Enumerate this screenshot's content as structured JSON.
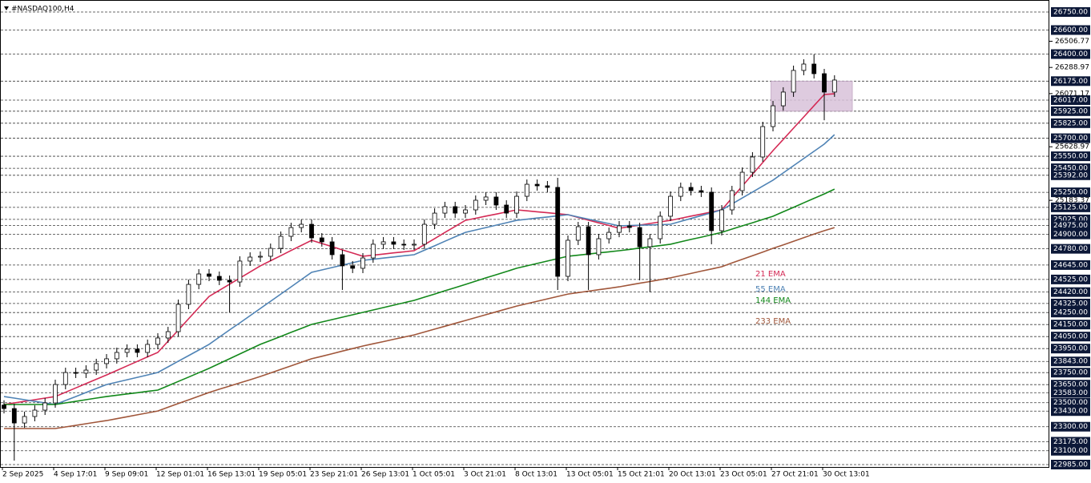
{
  "chart_data": {
    "type": "candlestick",
    "title": "#NASDAQ100,H4",
    "categories": [
      "2 Sep 2025",
      null,
      null,
      null,
      null,
      "4 Sep 17:01",
      null,
      null,
      null,
      null,
      "9 Sep 09:01",
      null,
      null,
      null,
      null,
      "12 Sep 01:01",
      null,
      null,
      null,
      null,
      "16 Sep 13:01",
      null,
      null,
      null,
      null,
      "19 Sep 05:01",
      null,
      null,
      null,
      null,
      "23 Sep 21:01",
      null,
      null,
      null,
      null,
      "26 Sep 13:01",
      null,
      null,
      null,
      null,
      "1 Oct 05:01",
      null,
      null,
      null,
      null,
      "3 Oct 21:01",
      null,
      null,
      null,
      null,
      "8 Oct 13:01",
      null,
      null,
      null,
      null,
      "13 Oct 05:01",
      null,
      null,
      null,
      null,
      "15 Oct 21:01",
      null,
      null,
      null,
      null,
      "20 Oct 13:01",
      null,
      null,
      null,
      null,
      "23 Oct 05:01",
      null,
      null,
      null,
      null,
      "27 Oct 21:01",
      null,
      null,
      null,
      null,
      "30 Oct 13:01",
      null
    ],
    "open": [
      23480,
      23451,
      23331,
      23385,
      23438,
      23498,
      23651,
      23751,
      23745,
      23771,
      23825,
      23865,
      23918,
      23945,
      23918,
      23985,
      24038,
      24091,
      24318,
      24484,
      24571,
      24551,
      24518,
      24504,
      24678,
      24711,
      24718,
      24784,
      24884,
      24957,
      24984,
      24871,
      24838,
      24731,
      24638,
      24618,
      24704,
      24818,
      24838,
      24818,
      24811,
      24818,
      24984,
      25077,
      25131,
      25077,
      25104,
      25184,
      25211,
      25144,
      25077,
      25217,
      25317,
      25304,
      25291,
      24551,
      24851,
      24964,
      24731,
      24864,
      24917,
      24971,
      24957,
      24797,
      24864,
      25051,
      25217,
      25291,
      25264,
      25251,
      24931,
      25104,
      25264,
      25417,
      25544,
      25797,
      25970,
      26084,
      26264,
      26317,
      26237,
      26084
    ],
    "high": [
      23520,
      23491,
      23425,
      23478,
      23538,
      23691,
      23791,
      23791,
      23811,
      23865,
      23905,
      23958,
      23985,
      23985,
      24025,
      24078,
      24131,
      24358,
      24524,
      24611,
      24611,
      24591,
      24558,
      24718,
      24751,
      24758,
      24824,
      24924,
      24997,
      25024,
      25024,
      24911,
      24878,
      24771,
      24678,
      24744,
      24858,
      24878,
      24878,
      24858,
      24858,
      25024,
      25117,
      25171,
      25171,
      25144,
      25224,
      25251,
      25251,
      25184,
      25257,
      25357,
      25357,
      25344,
      25371,
      24891,
      25004,
      25004,
      24904,
      24957,
      25011,
      25011,
      24997,
      24904,
      25091,
      25257,
      25331,
      25331,
      25304,
      25291,
      25144,
      25304,
      25457,
      25584,
      25837,
      26010,
      26124,
      26304,
      26357,
      26397,
      26277,
      26224
    ],
    "low": [
      23411,
      23018,
      23291,
      23345,
      23398,
      23458,
      23611,
      23705,
      23705,
      23731,
      23785,
      23825,
      23878,
      23878,
      23878,
      23945,
      23998,
      24051,
      24278,
      24444,
      24511,
      24478,
      24251,
      24464,
      24638,
      24671,
      24678,
      24744,
      24844,
      24917,
      24831,
      24798,
      24691,
      24438,
      24578,
      24578,
      24664,
      24778,
      24778,
      24771,
      24771,
      24778,
      24944,
      25037,
      25037,
      25037,
      25064,
      25144,
      25104,
      25037,
      25037,
      25177,
      25264,
      25251,
      24438,
      24511,
      24811,
      24438,
      24691,
      24824,
      24877,
      24917,
      24518,
      24418,
      24824,
      25011,
      25177,
      25224,
      25211,
      24818,
      24891,
      25064,
      25224,
      25377,
      25504,
      25757,
      25930,
      26044,
      26224,
      26197,
      25850,
      26044
    ],
    "close": [
      23451,
      23331,
      23385,
      23438,
      23498,
      23651,
      23751,
      23745,
      23771,
      23825,
      23865,
      23918,
      23945,
      23918,
      23985,
      24038,
      24091,
      24318,
      24484,
      24571,
      24551,
      24518,
      24504,
      24678,
      24711,
      24718,
      24784,
      24884,
      24957,
      24984,
      24871,
      24838,
      24731,
      24638,
      24618,
      24704,
      24818,
      24838,
      24818,
      24811,
      24818,
      24984,
      25077,
      25131,
      25077,
      25104,
      25184,
      25211,
      25144,
      25077,
      25217,
      25317,
      25304,
      25291,
      24551,
      24851,
      24964,
      24731,
      24864,
      24917,
      24971,
      24957,
      24797,
      24864,
      25051,
      25217,
      25291,
      25264,
      25251,
      24931,
      25104,
      25264,
      25417,
      25544,
      25797,
      25970,
      26084,
      26264,
      26317,
      26237,
      26084,
      26184
    ],
    "up_color": "#ffffff",
    "down_color": "#000000",
    "series": [
      {
        "name": "21 EMA",
        "color": "#d42a55",
        "values": [
          23485,
          23498,
          23511,
          23525,
          23538,
          23551,
          23587,
          23623,
          23659,
          23695,
          23731,
          23768,
          23806,
          23843,
          23881,
          23918,
          24011,
          24104,
          24198,
          24291,
          24384,
          24435,
          24486,
          24536,
          24587,
          24638,
          24681,
          24723,
          24766,
          24808,
          24851,
          24824,
          24798,
          24771,
          24745,
          24718,
          24727,
          24736,
          24746,
          24755,
          24764,
          24815,
          24865,
          24916,
          24966,
          25017,
          25034,
          25052,
          25069,
          25087,
          25104,
          25096,
          25088,
          25080,
          25072,
          25064,
          25041,
          25019,
          24996,
          24974,
          24951,
          24964,
          24977,
          24991,
          25004,
          25017,
          25034,
          25052,
          25069,
          25087,
          25104,
          25203,
          25301,
          25400,
          25498,
          25597,
          25690,
          25784,
          25877,
          25971,
          26064,
          26070
        ]
      },
      {
        "name": "55 EMA",
        "color": "#4f83b5",
        "values": [
          23551,
          23538,
          23525,
          23511,
          23498,
          23485,
          23518,
          23551,
          23585,
          23618,
          23651,
          23671,
          23691,
          23711,
          23731,
          23751,
          23798,
          23845,
          23891,
          23938,
          23985,
          24045,
          24105,
          24164,
          24224,
          24284,
          24344,
          24404,
          24464,
          24524,
          24584,
          24604,
          24624,
          24644,
          24664,
          24684,
          24693,
          24703,
          24712,
          24722,
          24731,
          24768,
          24805,
          24843,
          24880,
          24917,
          24937,
          24957,
          24977,
          24997,
          25017,
          25026,
          25036,
          25045,
          25055,
          25064,
          25045,
          25027,
          25008,
          24990,
          24971,
          24974,
          24976,
          24979,
          24981,
          24984,
          25008,
          25032,
          25056,
          25080,
          25104,
          25153,
          25203,
          25252,
          25302,
          25351,
          25411,
          25471,
          25531,
          25591,
          25651,
          25730
        ]
      },
      {
        "name": "144 EMA",
        "color": "#12881a",
        "values": [
          23485,
          23485,
          23485,
          23485,
          23485,
          23485,
          23498,
          23511,
          23525,
          23538,
          23551,
          23562,
          23573,
          23583,
          23594,
          23605,
          23641,
          23677,
          23713,
          23749,
          23785,
          23825,
          23865,
          23905,
          23945,
          23985,
          24018,
          24051,
          24085,
          24118,
          24151,
          24171,
          24191,
          24211,
          24231,
          24251,
          24271,
          24291,
          24311,
          24331,
          24351,
          24378,
          24404,
          24431,
          24457,
          24484,
          24511,
          24538,
          24564,
          24591,
          24618,
          24638,
          24658,
          24678,
          24698,
          24718,
          24727,
          24736,
          24746,
          24755,
          24764,
          24775,
          24786,
          24796,
          24807,
          24818,
          24838,
          24858,
          24877,
          24897,
          24917,
          24944,
          24971,
          24997,
          25024,
          25051,
          25088,
          25125,
          25163,
          25200,
          25237,
          25277
        ]
      },
      {
        "name": "233 EMA",
        "color": "#a0563a",
        "values": [
          23285,
          23285,
          23285,
          23285,
          23285,
          23285,
          23298,
          23311,
          23325,
          23338,
          23351,
          23367,
          23383,
          23399,
          23415,
          23431,
          23462,
          23493,
          23523,
          23554,
          23585,
          23612,
          23638,
          23665,
          23691,
          23718,
          23747,
          23777,
          23806,
          23836,
          23865,
          23886,
          23907,
          23929,
          23950,
          23971,
          23990,
          24008,
          24027,
          24045,
          24064,
          24088,
          24112,
          24136,
          24160,
          24184,
          24208,
          24232,
          24256,
          24280,
          24304,
          24324,
          24344,
          24364,
          24384,
          24404,
          24416,
          24428,
          24440,
          24452,
          24464,
          24479,
          24494,
          24508,
          24523,
          24538,
          24557,
          24575,
          24594,
          24612,
          24631,
          24662,
          24692,
          24723,
          24753,
          24784,
          24813,
          24843,
          24872,
          24902,
          24931,
          24957
        ]
      }
    ],
    "ylim": [
      22965,
      26850
    ],
    "yticks": [
      26506.77,
      26288.97,
      26071.17,
      25628.97,
      25183.37
    ],
    "levels": [
      {
        "value": 26750,
        "label": "26750.00"
      },
      {
        "value": 26600,
        "label": "26600.00"
      },
      {
        "value": 26400,
        "label": "26400.00"
      },
      {
        "value": 26175,
        "label": "26175.00"
      },
      {
        "value": 26017,
        "label": "26017.00"
      },
      {
        "value": 25925,
        "label": "25925.00"
      },
      {
        "value": 25825,
        "label": "25825.00"
      },
      {
        "value": 25700,
        "label": "25700.00"
      },
      {
        "value": 25550,
        "label": "25550.00"
      },
      {
        "value": 25450,
        "label": "25450.00"
      },
      {
        "value": 25392,
        "label": "25392.00"
      },
      {
        "value": 25250,
        "label": "25250.00"
      },
      {
        "value": 25125,
        "label": "25125.00"
      },
      {
        "value": 25025,
        "label": "25025.00"
      },
      {
        "value": 24975,
        "label": "24975.00"
      },
      {
        "value": 24900,
        "label": "24900.00"
      },
      {
        "value": 24780,
        "label": "24780.00"
      },
      {
        "value": 24645,
        "label": "24645.00"
      },
      {
        "value": 24525,
        "label": "24525.00"
      },
      {
        "value": 24420,
        "label": "24420.00"
      },
      {
        "value": 24325,
        "label": "24325.00"
      },
      {
        "value": 24250,
        "label": "24250.00"
      },
      {
        "value": 24150,
        "label": "24150.00"
      },
      {
        "value": 24050,
        "label": "24050.00"
      },
      {
        "value": 23950,
        "label": "23950.00"
      },
      {
        "value": 23843,
        "label": "23843.00"
      },
      {
        "value": 23750,
        "label": "23750.00"
      },
      {
        "value": 23650,
        "label": "23650.00"
      },
      {
        "value": 23583,
        "label": "23583.00"
      },
      {
        "value": 23500,
        "label": "23500.00"
      },
      {
        "value": 23430,
        "label": "23430.00"
      },
      {
        "value": 23300,
        "label": "23300.00"
      },
      {
        "value": 23175,
        "label": "23175.00"
      },
      {
        "value": 23100,
        "label": "23100.00"
      },
      {
        "value": 22985,
        "label": "22985.00"
      }
    ],
    "zone": {
      "low": 25925,
      "high": 26175,
      "color": "#d9c3da"
    },
    "grid": true
  }
}
